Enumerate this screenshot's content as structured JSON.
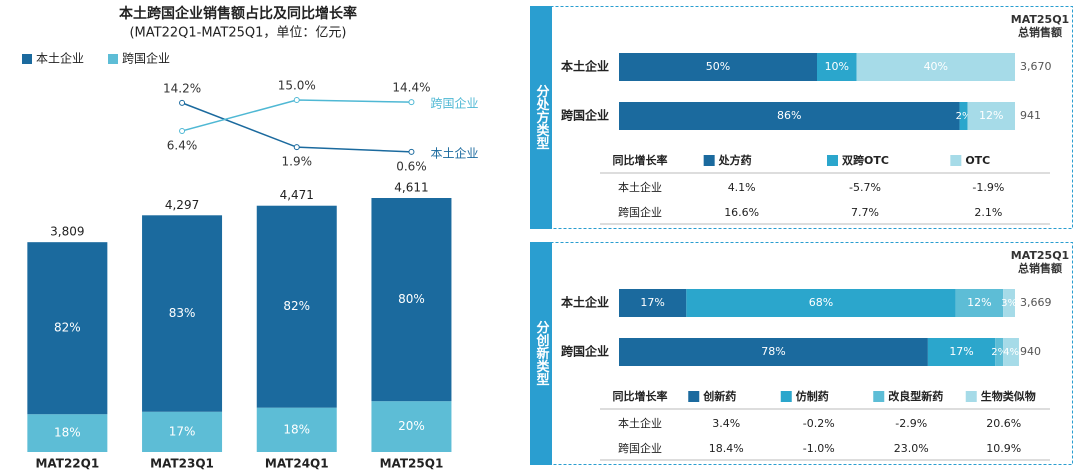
{
  "chart_data": [
    {
      "type": "stacked_bar",
      "title": "本土跨国企业销售额占比及同比增长率",
      "subtitle": "(MAT22Q1-MAT25Q1，单位：亿元)",
      "categories": [
        "MAT22Q1",
        "MAT23Q1",
        "MAT24Q1",
        "MAT25Q1"
      ],
      "series": [
        {
          "name": "本土企业",
          "color": "#1b6a9e",
          "values": [
            82,
            83,
            82,
            80
          ],
          "value_labels": [
            "82%",
            "83%",
            "82%",
            "80%"
          ]
        },
        {
          "name": "跨国企业",
          "color": "#5dbdd6",
          "values": [
            18,
            17,
            18,
            20
          ],
          "value_labels": [
            "18%",
            "17%",
            "18%",
            "20%"
          ]
        }
      ],
      "totals": {
        "values": [
          3809,
          4297,
          4471,
          4611
        ],
        "value_labels": [
          "3,809",
          "4,297",
          "4,471",
          "4,611"
        ]
      },
      "growth": {
        "type": "line",
        "series": [
          {
            "name": "本土企业",
            "color": "#1b6a9e",
            "values": [
              null,
              14.2,
              1.9,
              0.6
            ],
            "value_labels": [
              null,
              "14.2%",
              "1.9%",
              "0.6%"
            ]
          },
          {
            "name": "跨国企业",
            "color": "#4fb8d4",
            "values": [
              null,
              6.4,
              15,
              14.4
            ],
            "value_labels": [
              null,
              "6.4%",
              "15.0%",
              "14.4%"
            ]
          }
        ]
      }
    },
    {
      "type": "hbar_stacked",
      "title": "分处方类型",
      "total_header": [
        "MAT25Q1",
        "总销售额"
      ],
      "categories": [
        "本土企业",
        "跨国企业"
      ],
      "series": [
        {
          "name": "处方药",
          "color": "#1b6a9e",
          "values": [
            50,
            86
          ],
          "value_labels": [
            "50%",
            "86%"
          ]
        },
        {
          "name": "双跨OTC",
          "color": "#2ba6cc",
          "values": [
            10,
            2
          ],
          "value_labels": [
            "10%",
            "2%"
          ]
        },
        {
          "name": "OTC",
          "color": "#a6dbe8",
          "values": [
            40,
            12
          ],
          "value_labels": [
            "40%",
            "12%"
          ]
        }
      ],
      "totals": {
        "values": [
          3670,
          941
        ],
        "value_labels": [
          "3,670",
          "941"
        ]
      },
      "growth": {
        "title": "同比增长率",
        "rows": [
          {
            "values": [
              4.1,
              -5.7,
              -1.9
            ],
            "value_labels": [
              "4.1%",
              "-5.7%",
              "-1.9%"
            ]
          },
          {
            "values": [
              16.6,
              7.7,
              2.1
            ],
            "value_labels": [
              "16.6%",
              "7.7%",
              "2.1%"
            ]
          }
        ]
      }
    },
    {
      "type": "hbar_stacked",
      "title": "分创新类型",
      "total_header": [
        "MAT25Q1",
        "总销售额"
      ],
      "categories": [
        "本土企业",
        "跨国企业"
      ],
      "series": [
        {
          "name": "创新药",
          "color": "#1b6a9e",
          "values": [
            17,
            78
          ],
          "value_labels": [
            "17%",
            "78%"
          ]
        },
        {
          "name": "仿制药",
          "color": "#2ba6cc",
          "values": [
            68,
            17
          ],
          "value_labels": [
            "68%",
            "17%"
          ]
        },
        {
          "name": "改良型新药",
          "color": "#5dbdd6",
          "values": [
            12,
            2
          ],
          "value_labels": [
            "12%",
            "2%"
          ]
        },
        {
          "name": "生物类似物",
          "color": "#a6dbe8",
          "values": [
            3,
            4
          ],
          "value_labels": [
            "3%",
            "4%"
          ]
        }
      ],
      "totals": {
        "values": [
          3669,
          940
        ],
        "value_labels": [
          "3,669",
          "940"
        ]
      },
      "growth": {
        "title": "同比增长率",
        "rows": [
          {
            "values": [
              3.4,
              -0.2,
              -2.9,
              20.6
            ],
            "value_labels": [
              "3.4%",
              "-0.2%",
              "-2.9%",
              "20.6%"
            ]
          },
          {
            "values": [
              18.4,
              -1.0,
              23.0,
              10.9
            ],
            "value_labels": [
              "18.4%",
              "-1.0%",
              "23.0%",
              "10.9%"
            ]
          }
        ]
      }
    }
  ]
}
